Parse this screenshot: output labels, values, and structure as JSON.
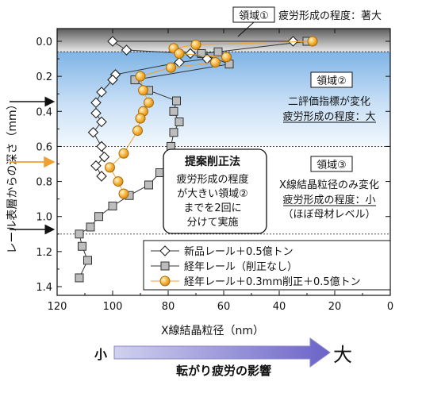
{
  "chart_data": {
    "type": "line",
    "xlabel": "X線結晶粒径（nm）",
    "ylabel": "レール表層からの深さ（mm）",
    "x_ticks": [
      "120",
      "100",
      "80",
      "60",
      "40",
      "20",
      "0"
    ],
    "y_ticks": [
      "0.0",
      "0.2",
      "0.4",
      "0.6",
      "0.8",
      "1.0",
      "1.2",
      "1.4"
    ],
    "xlim": [
      120,
      0
    ],
    "x_reversed": true,
    "ylim": [
      0,
      1.44
    ],
    "y_inverted": true,
    "legend_position": "bottom-right",
    "series": [
      {
        "name": "新品レール＋0.5億トン",
        "marker": "diamond",
        "color": "#222222",
        "points": [
          [
            35,
            0.0
          ],
          [
            100,
            0.0
          ],
          [
            95,
            0.05
          ],
          [
            72,
            0.07
          ],
          [
            66,
            0.1
          ],
          [
            76,
            0.12
          ],
          [
            99,
            0.19
          ],
          [
            100,
            0.22
          ],
          [
            104,
            0.29
          ],
          [
            106,
            0.35
          ],
          [
            106,
            0.41
          ],
          [
            104,
            0.46
          ],
          [
            107,
            0.52
          ],
          [
            104,
            0.6
          ],
          [
            103,
            0.66
          ],
          [
            106,
            0.71
          ],
          [
            104,
            0.77
          ]
        ]
      },
      {
        "name": "経年レール（削正なし）",
        "marker": "square",
        "color": "#444444",
        "points": [
          [
            30,
            0.0
          ],
          [
            62,
            0.06
          ],
          [
            68,
            0.07
          ],
          [
            58,
            0.13
          ],
          [
            92,
            0.22
          ],
          [
            87,
            0.28
          ],
          [
            77,
            0.34
          ],
          [
            78,
            0.4
          ],
          [
            76,
            0.46
          ],
          [
            78,
            0.52
          ],
          [
            79,
            0.6
          ],
          [
            79,
            0.68
          ],
          [
            83,
            0.75
          ],
          [
            87,
            0.82
          ],
          [
            94,
            0.88
          ],
          [
            100,
            0.94
          ],
          [
            105,
            1.0
          ],
          [
            108,
            1.06
          ],
          [
            112,
            1.1
          ],
          [
            111,
            1.17
          ],
          [
            109,
            1.25
          ],
          [
            112,
            1.35
          ]
        ]
      },
      {
        "name": "経年レール＋0.3mm削正＋0.5億トン",
        "marker": "circle",
        "color": "#e8a030",
        "points": [
          [
            28,
            0.0
          ],
          [
            70,
            0.02
          ],
          [
            78,
            0.04
          ],
          [
            76,
            0.07
          ],
          [
            59,
            0.09
          ],
          [
            63,
            0.12
          ],
          [
            79,
            0.15
          ],
          [
            90,
            0.2
          ],
          [
            89,
            0.28
          ],
          [
            87,
            0.35
          ],
          [
            89,
            0.4
          ],
          [
            90,
            0.44
          ],
          [
            91,
            0.51
          ],
          [
            96,
            0.64
          ],
          [
            101,
            0.72
          ],
          [
            98,
            0.8
          ],
          [
            96,
            0.87
          ]
        ]
      }
    ],
    "annotations": {
      "region1_label": "領域①",
      "region1_text": "疲労形成の程度：著大",
      "region2_label": "領域②",
      "region2_line1": "二評価指標が変化",
      "region2_line2": "疲労形成の程度：大",
      "region3_label": "領域③",
      "region3_line1": "X線結晶粒径のみ変化",
      "region3_line2": "疲労形成の程度：小",
      "region3_line3": "（ほぼ母材レベル）",
      "proposal_title": "提案削正法",
      "proposal_line1": "疲労形成の程度",
      "proposal_line2": "が大きい領域②",
      "proposal_line3": "までを2回に",
      "proposal_line4": "分けて実施"
    },
    "arrow_left_label": "小",
    "arrow_right_label": "大",
    "arrow_caption": "転がり疲労の影響",
    "colors": {
      "small": "#1c5fae",
      "large": "#e02020",
      "caption": "#4a3fa8",
      "orange": "#f0a030"
    }
  }
}
